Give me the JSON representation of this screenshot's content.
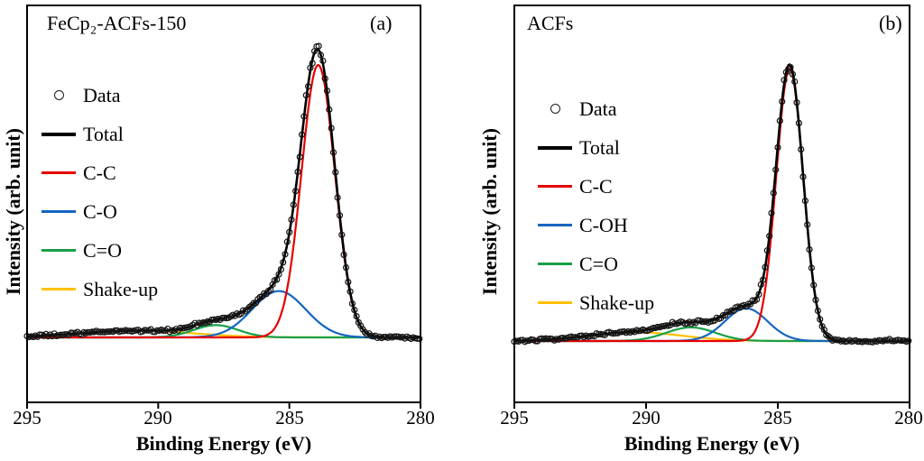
{
  "figure": {
    "background": "#ffffff",
    "description": "Two-panel C 1s XPS spectra with peak deconvolution"
  },
  "panels": [
    {
      "panel_label": "(a)",
      "title": "FeCp₂-ACFs-150",
      "xlabel": "Binding Energy (eV)",
      "ylabel": "Intensity (arb. unit)",
      "x_ticks": [
        "295",
        "290",
        "285",
        "280"
      ],
      "legend": [
        {
          "label": "Data",
          "marker": "open-circle",
          "color": "#1a1a1a"
        },
        {
          "label": "Total",
          "marker": "line",
          "color": "#000000"
        },
        {
          "label": "C-C",
          "marker": "line",
          "color": "#e60000"
        },
        {
          "label": "C-O",
          "marker": "line",
          "color": "#1565c0"
        },
        {
          "label": "C=O",
          "marker": "line",
          "color": "#18a048"
        },
        {
          "label": "Shake-up",
          "marker": "line",
          "color": "#ffc000"
        }
      ],
      "chart_data": {
        "type": "line",
        "title": "FeCp₂-ACFs-150",
        "xlabel": "Binding Energy (eV)",
        "ylabel": "Intensity (arb. unit)",
        "x_range": [
          295,
          280
        ],
        "x_axis_reversed": true,
        "x_tick_values": [
          295,
          290,
          285,
          280
        ],
        "y_axis": "arbitrary units, no tick labels",
        "legend_position": "upper-left inside plot",
        "grid": false,
        "series": [
          {
            "name": "C-C",
            "color": "#e60000",
            "peak_center_eV": 283.9,
            "amplitude": 1.0,
            "fwhm_eV": 1.5
          },
          {
            "name": "C-O",
            "color": "#1565c0",
            "peak_center_eV": 285.4,
            "amplitude": 0.17,
            "fwhm_eV": 2.4
          },
          {
            "name": "C=O",
            "color": "#18a048",
            "peak_center_eV": 287.8,
            "amplitude": 0.045,
            "fwhm_eV": 2.0
          },
          {
            "name": "Shake-up",
            "color": "#ffc000",
            "peak_center_eV": 290.8,
            "amplitude": 0.025,
            "fwhm_eV": 5.0
          }
        ],
        "total": {
          "name": "Total",
          "color": "#000000",
          "composition": "sum of all fitted components"
        },
        "data_points": {
          "name": "Data",
          "marker": "open-circle",
          "follows": "Total plus noise",
          "step_eV": 0.08
        }
      }
    },
    {
      "panel_label": "(b)",
      "title": "ACFs",
      "xlabel": "Binding Energy (eV)",
      "ylabel": "Intensity (arb. unit)",
      "x_ticks": [
        "295",
        "290",
        "285",
        "280"
      ],
      "legend": [
        {
          "label": "Data",
          "marker": "open-circle",
          "color": "#1a1a1a"
        },
        {
          "label": "Total",
          "marker": "line",
          "color": "#000000"
        },
        {
          "label": "C-C",
          "marker": "line",
          "color": "#e60000"
        },
        {
          "label": "C-OH",
          "marker": "line",
          "color": "#1565c0"
        },
        {
          "label": "C=O",
          "marker": "line",
          "color": "#18a048"
        },
        {
          "label": "Shake-up",
          "marker": "line",
          "color": "#ffc000"
        }
      ],
      "chart_data": {
        "type": "line",
        "title": "ACFs",
        "xlabel": "Binding Energy (eV)",
        "ylabel": "Intensity (arb. unit)",
        "x_range": [
          295,
          280
        ],
        "x_axis_reversed": true,
        "x_tick_values": [
          295,
          290,
          285,
          280
        ],
        "y_axis": "arbitrary units, no tick labels",
        "legend_position": "upper-left inside plot",
        "grid": false,
        "series": [
          {
            "name": "C-C",
            "color": "#e60000",
            "peak_center_eV": 284.55,
            "amplitude": 1.0,
            "fwhm_eV": 1.2
          },
          {
            "name": "C-OH",
            "color": "#1565c0",
            "peak_center_eV": 286.2,
            "amplitude": 0.12,
            "fwhm_eV": 1.9
          },
          {
            "name": "C=O",
            "color": "#18a048",
            "peak_center_eV": 288.3,
            "amplitude": 0.05,
            "fwhm_eV": 2.2
          },
          {
            "name": "Shake-up",
            "color": "#ffc000",
            "peak_center_eV": 290.4,
            "amplitude": 0.032,
            "fwhm_eV": 4.2
          }
        ],
        "total": {
          "name": "Total",
          "color": "#000000",
          "composition": "sum of all fitted components"
        },
        "data_points": {
          "name": "Data",
          "marker": "open-circle",
          "follows": "Total plus noise",
          "step_eV": 0.08
        }
      }
    }
  ]
}
